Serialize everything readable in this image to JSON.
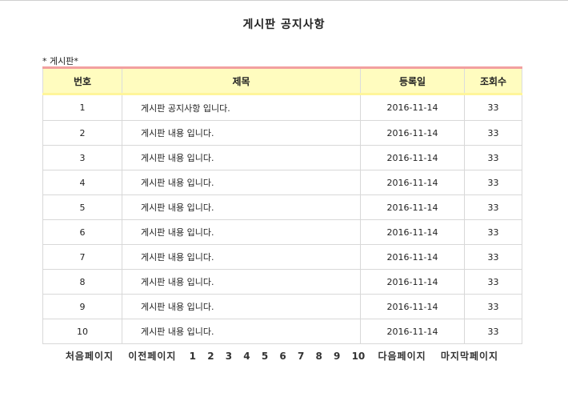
{
  "page": {
    "title": "게시판 공지사항",
    "section_label": "* 게시판*"
  },
  "table": {
    "headers": {
      "no": "번호",
      "title": "제목",
      "date": "등록일",
      "views": "조회수"
    },
    "rows": [
      {
        "no": "1",
        "title": "게시판 공지사항 입니다.",
        "date": "2016-11-14",
        "views": "33"
      },
      {
        "no": "2",
        "title": "게시판 내용 입니다.",
        "date": "2016-11-14",
        "views": "33"
      },
      {
        "no": "3",
        "title": "게시판 내용 입니다.",
        "date": "2016-11-14",
        "views": "33"
      },
      {
        "no": "4",
        "title": "게시판 내용 입니다.",
        "date": "2016-11-14",
        "views": "33"
      },
      {
        "no": "5",
        "title": "게시판 내용 입니다.",
        "date": "2016-11-14",
        "views": "33"
      },
      {
        "no": "6",
        "title": "게시판 내용 입니다.",
        "date": "2016-11-14",
        "views": "33"
      },
      {
        "no": "7",
        "title": "게시판 내용 입니다.",
        "date": "2016-11-14",
        "views": "33"
      },
      {
        "no": "8",
        "title": "게시판 내용 입니다.",
        "date": "2016-11-14",
        "views": "33"
      },
      {
        "no": "9",
        "title": "게시판 내용 입니다.",
        "date": "2016-11-14",
        "views": "33"
      },
      {
        "no": "10",
        "title": "게시판 내용 입니다.",
        "date": "2016-11-14",
        "views": "33"
      }
    ]
  },
  "pagination": {
    "first": "처음페이지",
    "prev": "이전페이지",
    "pages": [
      "1",
      "2",
      "3",
      "4",
      "5",
      "6",
      "7",
      "8",
      "9",
      "10"
    ],
    "next": "다음페이지",
    "last": "마지막페이지"
  },
  "colors": {
    "header_bg": "#fffcbf",
    "header_top_border": "#f2a0a0",
    "header_bottom_border": "#fff59a",
    "cell_border": "#d8d8d8"
  }
}
